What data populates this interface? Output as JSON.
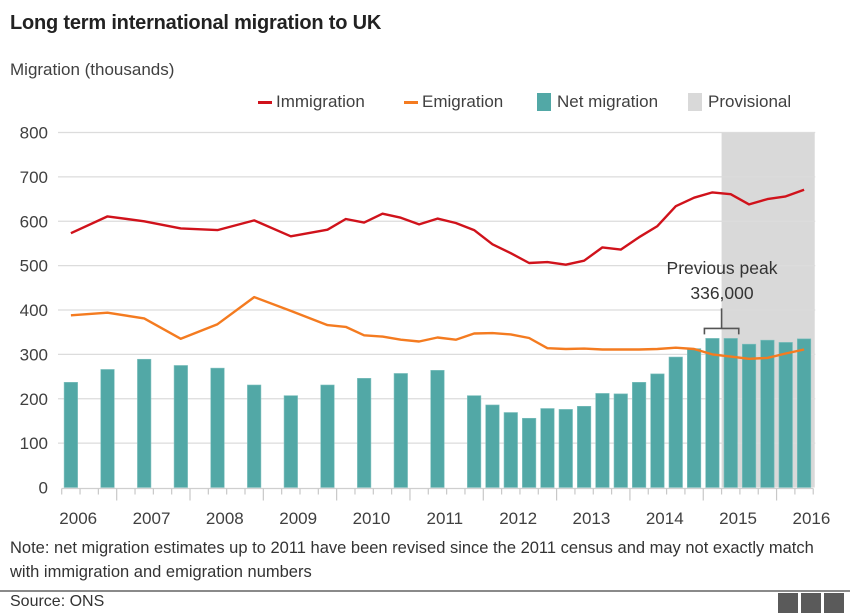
{
  "title": "Long term international migration to UK",
  "note": "Note: net migration estimates up to 2011 have been revised since the 2011 census and may not exactly match with immigration and emigration numbers",
  "source": "Source: ONS",
  "logo": "BBC",
  "colors": {
    "immigration": "#d0121b",
    "emigration": "#f47b20",
    "net_migration": "#52a8a6",
    "provisional": "#d9d9d9",
    "grid": "#dcdcdc",
    "axis_text": "#404040"
  },
  "chart_data": {
    "type": "bar",
    "title": "Long term international migration to UK",
    "ylabel": "Migration (thousands)",
    "xlabel": "",
    "ylim": [
      0,
      800
    ],
    "yticks": [
      0,
      100,
      200,
      300,
      400,
      500,
      600,
      700,
      800
    ],
    "grid": true,
    "legend_position": "top-right",
    "x_unit": "quarter index (0 = first quarter shown, 41 quarters total)",
    "x_quarters_total": 41,
    "year_labels": [
      "2006",
      "2007",
      "2008",
      "2009",
      "2010",
      "2011",
      "2012",
      "2013",
      "2014",
      "2015",
      "2016"
    ],
    "legend": [
      {
        "name": "Immigration",
        "kind": "line",
        "key": "immigration"
      },
      {
        "name": "Emigration",
        "kind": "line",
        "key": "emigration"
      },
      {
        "name": "Net migration",
        "kind": "bar",
        "key": "net_migration"
      },
      {
        "name": "Provisional",
        "kind": "shade",
        "key": "provisional"
      }
    ],
    "series": [
      {
        "name": "Immigration",
        "type": "line",
        "x": [
          0,
          2,
          4,
          6,
          8,
          10,
          12,
          14,
          15,
          16,
          17,
          18,
          19,
          20,
          21,
          22,
          23,
          24,
          25,
          26,
          27,
          28,
          29,
          30,
          31,
          32,
          33,
          34,
          35,
          36,
          37,
          38,
          39,
          40
        ],
        "values": [
          573,
          611,
          600,
          584,
          580,
          602,
          566,
          581,
          605,
          597,
          617,
          608,
          593,
          606,
          596,
          580,
          548,
          528,
          506,
          508,
          502,
          511,
          541,
          536,
          564,
          589,
          634,
          653,
          665,
          661,
          638,
          650,
          656,
          671
        ]
      },
      {
        "name": "Emigration",
        "type": "line",
        "x": [
          0,
          2,
          4,
          6,
          8,
          10,
          12,
          14,
          15,
          16,
          17,
          18,
          19,
          20,
          21,
          22,
          23,
          24,
          25,
          26,
          27,
          28,
          29,
          30,
          31,
          32,
          33,
          34,
          35,
          36,
          37,
          38,
          39,
          40
        ],
        "values": [
          388,
          394,
          381,
          335,
          368,
          429,
          398,
          366,
          362,
          343,
          340,
          333,
          329,
          338,
          333,
          347,
          348,
          345,
          337,
          314,
          312,
          313,
          311,
          311,
          311,
          312,
          315,
          312,
          300,
          295,
          290,
          292,
          302,
          311
        ]
      },
      {
        "name": "Net migration",
        "type": "bar",
        "x": [
          0,
          2,
          4,
          6,
          8,
          10,
          12,
          14,
          16,
          18,
          20,
          22,
          23,
          24,
          25,
          26,
          27,
          28,
          29,
          30,
          31,
          32,
          33,
          34,
          35,
          36,
          37,
          38,
          39,
          40
        ],
        "values": [
          237,
          266,
          289,
          275,
          269,
          231,
          207,
          231,
          246,
          257,
          264,
          207,
          186,
          169,
          156,
          178,
          176,
          183,
          212,
          211,
          237,
          256,
          294,
          313,
          336,
          336,
          323,
          332,
          327,
          335
        ]
      }
    ],
    "provisional_range": [
      36,
      41
    ],
    "annotations": [
      {
        "text": [
          "Previous peak",
          "336,000"
        ],
        "bracket_x": [
          35,
          36
        ],
        "value": 336
      }
    ]
  }
}
